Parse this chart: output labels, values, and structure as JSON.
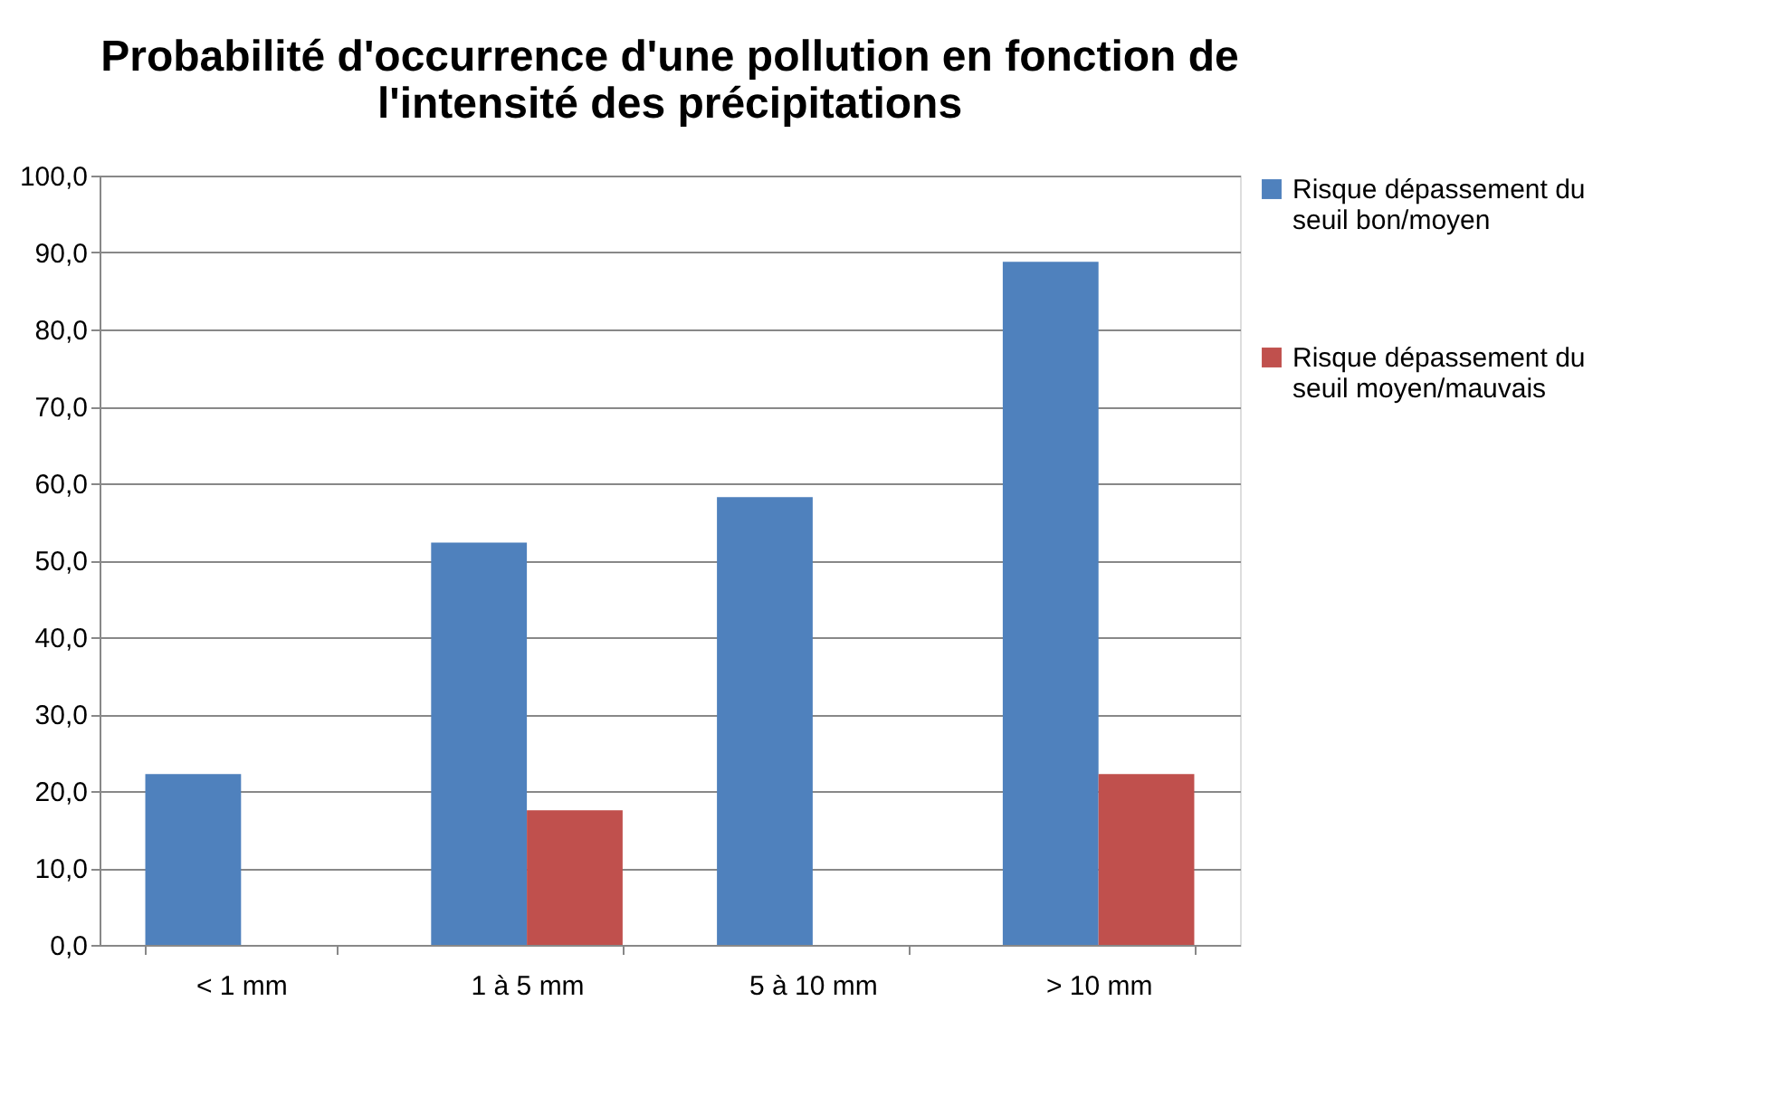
{
  "chart_data": {
    "type": "bar",
    "title": "Probabilité d'occurrence d'une pollution en fonction de l'intensité des précipitations",
    "categories": [
      "< 1 mm",
      "1 à 5 mm",
      "5 à 10 mm",
      "> 10 mm"
    ],
    "series": [
      {
        "name": "Risque dépassement du seuil bon/moyen",
        "color": "#4f81bd",
        "values": [
          22.2,
          52.3,
          58.2,
          88.8
        ]
      },
      {
        "name": "Risque dépassement du seuil moyen/mauvais",
        "color": "#c0504d",
        "values": [
          null,
          17.5,
          null,
          22.2
        ]
      }
    ],
    "ylim": [
      0,
      100
    ],
    "yticks": [
      {
        "value": 0,
        "label": "0,0"
      },
      {
        "value": 10,
        "label": "10,0"
      },
      {
        "value": 20,
        "label": "20,0"
      },
      {
        "value": 30,
        "label": "30,0"
      },
      {
        "value": 40,
        "label": "40,0"
      },
      {
        "value": 50,
        "label": "50,0"
      },
      {
        "value": 60,
        "label": "60,0"
      },
      {
        "value": 70,
        "label": "70,0"
      },
      {
        "value": 80,
        "label": "80,0"
      },
      {
        "value": 90,
        "label": "90,0"
      },
      {
        "value": 100,
        "label": "100,0"
      }
    ],
    "grid": "y",
    "legend": "right"
  }
}
